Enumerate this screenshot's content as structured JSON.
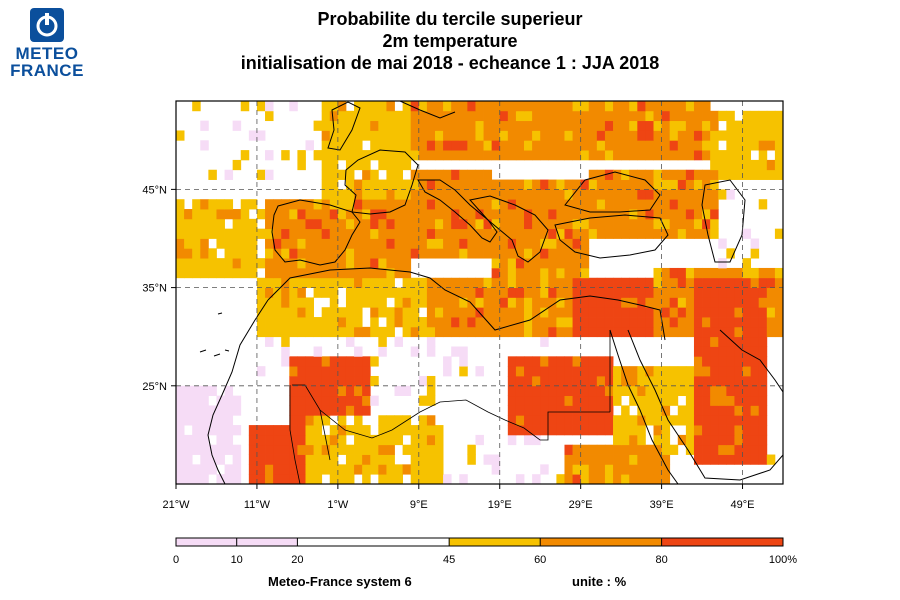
{
  "logo": {
    "line1": "METEO",
    "line2": "FRANCE"
  },
  "title": {
    "line1": "Probabilite du tercile superieur",
    "line2": "2m temperature",
    "line3": "initialisation de mai 2018  -  echeance 1 : JJA 2018"
  },
  "axes": {
    "lon_ticks": [
      "21°W",
      "11°W",
      "1°W",
      "9°E",
      "19°E",
      "29°E",
      "39°E",
      "49°E"
    ],
    "lon_values": [
      -21,
      -11,
      -1,
      9,
      19,
      29,
      39,
      49
    ],
    "lat_ticks": [
      "45°N",
      "35°N",
      "25°N"
    ],
    "lat_values": [
      45,
      35,
      25
    ],
    "lon_range": [
      -21,
      54
    ],
    "lat_range": [
      15,
      54
    ],
    "grid": "dashed"
  },
  "colorbar": {
    "ticks": [
      "0",
      "10",
      "20",
      "45",
      "60",
      "80",
      "100%"
    ],
    "tick_values": [
      0,
      10,
      20,
      45,
      60,
      80,
      100
    ],
    "bins": [
      {
        "from": 0,
        "to": 20,
        "color": "#f6dcf6"
      },
      {
        "from": 20,
        "to": 45,
        "color": "#ffffff"
      },
      {
        "from": 45,
        "to": 60,
        "color": "#f6c200"
      },
      {
        "from": 60,
        "to": 80,
        "color": "#f28a00"
      },
      {
        "from": 80,
        "to": 100,
        "color": "#ee4513"
      }
    ]
  },
  "footer": {
    "model": "Meteo-France system 6",
    "unit": "unite : %"
  },
  "colors": {
    "yellow": "#f6c200",
    "orange": "#f28a00",
    "red": "#ee4513",
    "pink": "#f6dcf6",
    "logo_blue": "#0b4f9c"
  },
  "chart_data": {
    "type": "heatmap",
    "title": "Probabilite du tercile superieur",
    "subtitle": "2m temperature",
    "variable": "2m temperature",
    "units": "%",
    "regions": [
      {
        "lon": [
          -21,
          -15
        ],
        "lat": [
          45,
          54
        ],
        "value": 20
      },
      {
        "lon": [
          -15,
          -3
        ],
        "lat": [
          45,
          54
        ],
        "value": 40
      },
      {
        "lon": [
          -3,
          8
        ],
        "lat": [
          44,
          50
        ],
        "value": 52
      },
      {
        "lon": [
          -3,
          8
        ],
        "lat": [
          50,
          54
        ],
        "value": 48
      },
      {
        "lon": [
          8,
          45
        ],
        "lat": [
          48,
          54
        ],
        "value": 68
      },
      {
        "lon": [
          45,
          54
        ],
        "lat": [
          46,
          53
        ],
        "value": 52
      },
      {
        "lon": [
          -21,
          -10
        ],
        "lat": [
          36,
          44
        ],
        "value": 50
      },
      {
        "lon": [
          -10,
          8
        ],
        "lat": [
          36,
          44
        ],
        "value": 66
      },
      {
        "lon": [
          8,
          18
        ],
        "lat": [
          38,
          47
        ],
        "value": 70
      },
      {
        "lon": [
          18,
          30
        ],
        "lat": [
          36,
          46
        ],
        "value": 72
      },
      {
        "lon": [
          30,
          46
        ],
        "lat": [
          40,
          47
        ],
        "value": 70
      },
      {
        "lon": [
          46,
          54
        ],
        "lat": [
          37,
          45
        ],
        "value": 40
      },
      {
        "lon": [
          -11,
          10
        ],
        "lat": [
          30,
          36
        ],
        "value": 58
      },
      {
        "lon": [
          10,
          28
        ],
        "lat": [
          30,
          36
        ],
        "value": 68
      },
      {
        "lon": [
          28,
          38
        ],
        "lat": [
          30,
          36
        ],
        "value": 85
      },
      {
        "lon": [
          38,
          54
        ],
        "lat": [
          30,
          37
        ],
        "value": 70
      },
      {
        "lon": [
          -11,
          25
        ],
        "lat": [
          26,
          30
        ],
        "value": 30
      },
      {
        "lon": [
          43,
          52
        ],
        "lat": [
          24,
          36
        ],
        "value": 82
      },
      {
        "lon": [
          -7,
          3
        ],
        "lat": [
          20,
          28
        ],
        "value": 85
      },
      {
        "lon": [
          3,
          12
        ],
        "lat": [
          23,
          27
        ],
        "value": 35
      },
      {
        "lon": [
          20,
          33
        ],
        "lat": [
          20,
          28
        ],
        "value": 85
      },
      {
        "lon": [
          33,
          43
        ],
        "lat": [
          18,
          27
        ],
        "value": 55
      },
      {
        "lon": [
          43,
          52
        ],
        "lat": [
          17,
          24
        ],
        "value": 84
      },
      {
        "lon": [
          -21,
          -13
        ],
        "lat": [
          15,
          25
        ],
        "value": 15
      },
      {
        "lon": [
          -12,
          -5
        ],
        "lat": [
          15,
          21
        ],
        "value": 85
      },
      {
        "lon": [
          -5,
          12
        ],
        "lat": [
          15,
          22
        ],
        "value": 55
      },
      {
        "lon": [
          12,
          27
        ],
        "lat": [
          15,
          20
        ],
        "value": 35
      },
      {
        "lon": [
          27,
          40
        ],
        "lat": [
          15,
          19
        ],
        "value": 62
      },
      {
        "lon": [
          52,
          54
        ],
        "lat": [
          15,
          20
        ],
        "value": 30
      }
    ]
  }
}
